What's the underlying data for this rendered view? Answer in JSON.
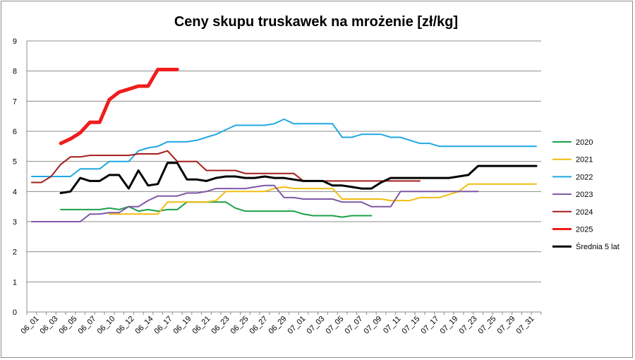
{
  "chart_data": {
    "type": "line",
    "title": "Ceny skupu truskawek na mrożenie [zł/kg]",
    "xlabel": "",
    "ylabel": "",
    "ylim": [
      0,
      9
    ],
    "yticks": [
      "0",
      "1",
      "2",
      "3",
      "4",
      "5",
      "6",
      "7",
      "8",
      "9"
    ],
    "grid": "horizontal",
    "legend_position": "right",
    "x": [
      "06_01",
      "06_02",
      "06_03",
      "06_04",
      "06_05",
      "06_06",
      "06_07",
      "06_08",
      "06_10",
      "06_11",
      "06_12",
      "06_13",
      "06_14",
      "06_15",
      "06_17",
      "06_18",
      "06_19",
      "06_20",
      "06_21",
      "06_22",
      "06_23",
      "06_24",
      "06_25",
      "06_26",
      "06_27",
      "06_28",
      "06_29",
      "06_30",
      "07_01",
      "07_02",
      "07_03",
      "07_04",
      "07_05",
      "07_06",
      "07_07",
      "07_08",
      "07_09",
      "07_10",
      "07_11",
      "07_12",
      "07_15",
      "07_16",
      "07_17",
      "07_18",
      "07_19",
      "07_20",
      "07_23",
      "07_24",
      "07_25",
      "07_26",
      "07_29",
      "07_30",
      "07_31"
    ],
    "xtick_labels": [
      "06_01",
      "06_03",
      "06_05",
      "06_07",
      "06_10",
      "06_12",
      "06_14",
      "06_17",
      "06_19",
      "06_21",
      "06_23",
      "06_25",
      "06_27",
      "06_29",
      "07_01",
      "07_03",
      "07_05",
      "07_07",
      "07_09",
      "07_11",
      "07_15",
      "07_17",
      "07_19",
      "07_23",
      "07_25",
      "07_29",
      "07_31"
    ],
    "series": [
      {
        "name": "2020",
        "color": "#1ba04a",
        "width": 2,
        "values": [
          null,
          null,
          null,
          3.4,
          3.4,
          3.4,
          3.4,
          3.4,
          3.45,
          3.4,
          3.5,
          3.35,
          3.4,
          3.35,
          3.4,
          3.4,
          3.65,
          3.65,
          3.65,
          3.65,
          3.65,
          3.45,
          3.35,
          3.35,
          3.35,
          3.35,
          3.35,
          3.35,
          3.25,
          3.2,
          3.2,
          3.2,
          3.15,
          3.2,
          3.2,
          3.2,
          null,
          null,
          null,
          null,
          null,
          null,
          null,
          null,
          null,
          null,
          null,
          null,
          null,
          null,
          null,
          null,
          null
        ]
      },
      {
        "name": "2021",
        "color": "#f2bd0f",
        "width": 2,
        "values": [
          null,
          null,
          null,
          null,
          null,
          null,
          null,
          null,
          3.25,
          3.25,
          3.25,
          3.25,
          3.25,
          3.25,
          3.65,
          3.65,
          3.65,
          3.65,
          3.65,
          3.7,
          4.0,
          4.0,
          4.0,
          4.0,
          4.0,
          4.1,
          4.15,
          4.1,
          4.1,
          4.1,
          4.1,
          4.1,
          3.75,
          3.75,
          3.75,
          3.75,
          3.75,
          3.7,
          3.7,
          3.7,
          3.8,
          3.8,
          3.8,
          3.9,
          4.0,
          4.25,
          4.25,
          4.25,
          4.25,
          4.25,
          4.25,
          4.25,
          4.25
        ]
      },
      {
        "name": "2022",
        "color": "#1ea8e4",
        "width": 2,
        "values": [
          4.5,
          4.5,
          4.5,
          4.5,
          4.5,
          4.75,
          4.75,
          4.75,
          5.0,
          5.0,
          5.0,
          5.35,
          5.45,
          5.5,
          5.65,
          5.65,
          5.65,
          5.7,
          5.8,
          5.9,
          6.05,
          6.2,
          6.2,
          6.2,
          6.2,
          6.25,
          6.4,
          6.25,
          6.25,
          6.25,
          6.25,
          6.25,
          5.8,
          5.8,
          5.9,
          5.9,
          5.9,
          5.8,
          5.8,
          5.7,
          5.6,
          5.6,
          5.5,
          5.5,
          5.5,
          5.5,
          5.5,
          5.5,
          5.5,
          5.5,
          5.5,
          5.5,
          5.5
        ]
      },
      {
        "name": "2023",
        "color": "#7f58a6",
        "width": 2,
        "values": [
          3.0,
          3.0,
          3.0,
          3.0,
          3.0,
          3.0,
          3.25,
          3.25,
          3.3,
          3.3,
          3.5,
          3.5,
          3.7,
          3.85,
          3.85,
          3.85,
          3.95,
          3.95,
          4.0,
          4.1,
          4.1,
          4.1,
          4.1,
          4.15,
          4.2,
          4.2,
          3.8,
          3.8,
          3.75,
          3.75,
          3.75,
          3.75,
          3.65,
          3.65,
          3.65,
          3.5,
          3.5,
          3.5,
          4.0,
          4.0,
          4.0,
          4.0,
          4.0,
          4.0,
          4.0,
          4.0,
          4.0,
          null,
          null,
          null,
          null,
          null,
          null
        ]
      },
      {
        "name": "2024",
        "color": "#a61c1c",
        "width": 2,
        "values": [
          4.3,
          4.3,
          4.5,
          4.9,
          5.15,
          5.15,
          5.2,
          5.2,
          5.2,
          5.2,
          5.2,
          5.25,
          5.25,
          5.25,
          5.35,
          5.0,
          5.0,
          5.0,
          4.7,
          4.7,
          4.7,
          4.7,
          4.6,
          4.6,
          4.6,
          4.6,
          4.6,
          4.6,
          4.35,
          4.35,
          4.35,
          4.35,
          4.35,
          4.35,
          4.35,
          4.35,
          4.35,
          4.35,
          4.35,
          4.35,
          4.35,
          null,
          null,
          null,
          null,
          null,
          null,
          null,
          null,
          null,
          null,
          null,
          null
        ]
      },
      {
        "name": "2025",
        "color": "#f01c1c",
        "width": 5,
        "values": [
          null,
          null,
          null,
          5.6,
          5.75,
          5.95,
          6.3,
          6.3,
          7.05,
          7.3,
          7.4,
          7.5,
          7.5,
          8.05,
          8.05,
          8.05,
          null,
          null,
          null,
          null,
          null,
          null,
          null,
          null,
          null,
          null,
          null,
          null,
          null,
          null,
          null,
          null,
          null,
          null,
          null,
          null,
          null,
          null,
          null,
          null,
          null,
          null,
          null,
          null,
          null,
          null,
          null,
          null,
          null,
          null,
          null,
          null,
          null
        ]
      },
      {
        "name": "Średnia 5 lat",
        "color": "#000000",
        "width": 3,
        "values": [
          null,
          null,
          null,
          3.95,
          4.0,
          4.45,
          4.35,
          4.35,
          4.55,
          4.55,
          4.1,
          4.7,
          4.2,
          4.25,
          4.95,
          4.95,
          4.4,
          4.4,
          4.35,
          4.45,
          4.5,
          4.5,
          4.45,
          4.45,
          4.5,
          4.45,
          4.45,
          4.4,
          4.35,
          4.35,
          4.35,
          4.2,
          4.2,
          4.15,
          4.1,
          4.1,
          4.3,
          4.45,
          4.45,
          4.45,
          4.45,
          4.45,
          4.45,
          4.45,
          4.5,
          4.55,
          4.85,
          4.85,
          4.85,
          4.85,
          4.85,
          4.85,
          4.85
        ]
      }
    ]
  }
}
